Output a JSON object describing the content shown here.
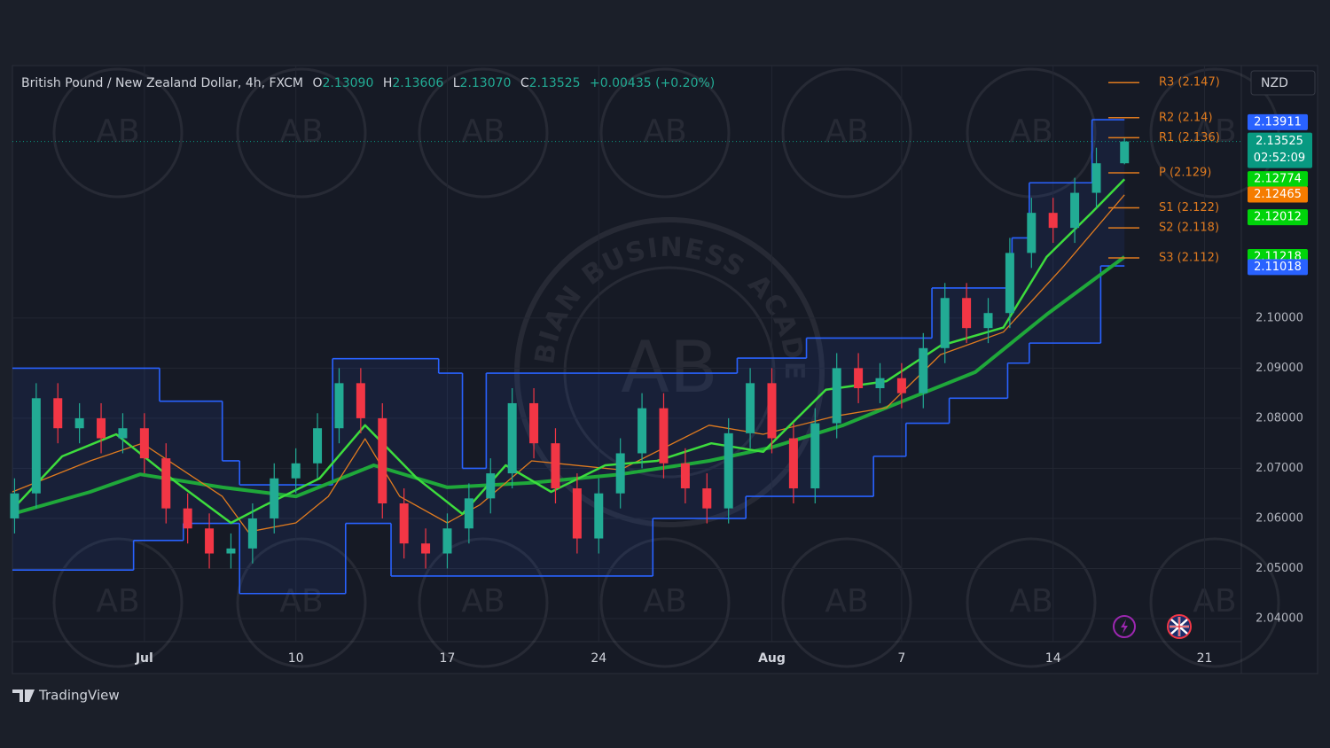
{
  "header": {
    "symbol": "British Pound / New Zealand Dollar, 4h, FXCM",
    "ohlc": [
      {
        "key": "O",
        "value": "2.13090"
      },
      {
        "key": "H",
        "value": "2.13606"
      },
      {
        "key": "L",
        "value": "2.13070"
      },
      {
        "key": "C",
        "value": "2.13525"
      }
    ],
    "change": "+0.00435 (+0.20%)"
  },
  "currency": "NZD",
  "branding": "TradingView",
  "watermark": {
    "text": "ARABIAN BUSINESS ACADEMY",
    "initials": "AB"
  },
  "chart_data": {
    "type": "candlestick",
    "xlim": [
      -3.1,
      53.7
    ],
    "ylim": [
      2.0354,
      2.1504
    ],
    "xticks": [
      {
        "value": 3,
        "label": "Jul"
      },
      10,
      17,
      24,
      {
        "value": 32,
        "label": "Aug"
      },
      {
        "value": 38,
        "label": "7"
      },
      {
        "value": 45,
        "label": "14"
      },
      {
        "value": 52,
        "label": "21"
      }
    ],
    "yticks": [
      {
        "value": 2.04,
        "label": "2.04000"
      },
      {
        "value": 2.05,
        "label": "2.05000"
      },
      {
        "value": 2.06,
        "label": "2.06000"
      },
      {
        "value": 2.07,
        "label": "2.07000"
      },
      {
        "value": 2.08,
        "label": "2.08000"
      },
      {
        "value": 2.09,
        "label": "2.09000"
      },
      {
        "value": 2.1,
        "label": "2.10000"
      }
    ],
    "grid": true,
    "up_color": "#22ab94",
    "down_color": "#f23645",
    "candles": {
      "x": [
        -3,
        -2,
        -1,
        0,
        1,
        2,
        3,
        4,
        5,
        6,
        7,
        8,
        9,
        10,
        11,
        12,
        13,
        14,
        15,
        16,
        17,
        18,
        19,
        20,
        21,
        22,
        23,
        24,
        25,
        26,
        27,
        28,
        29,
        30,
        31,
        32,
        33,
        34,
        35,
        36,
        37,
        38,
        39,
        40,
        41,
        42,
        43,
        44,
        45,
        46,
        47,
        48.3
      ],
      "open": [
        2.06,
        2.065,
        2.084,
        2.078,
        2.08,
        2.076,
        2.078,
        2.072,
        2.062,
        2.058,
        2.053,
        2.054,
        2.06,
        2.068,
        2.071,
        2.078,
        2.087,
        2.08,
        2.063,
        2.055,
        2.053,
        2.058,
        2.064,
        2.069,
        2.083,
        2.075,
        2.066,
        2.056,
        2.065,
        2.073,
        2.082,
        2.071,
        2.066,
        2.062,
        2.077,
        2.087,
        2.076,
        2.066,
        2.079,
        2.09,
        2.086,
        2.088,
        2.085,
        2.094,
        2.104,
        2.098,
        2.101,
        2.113,
        2.121,
        2.118,
        2.125,
        2.1309
      ],
      "high": [
        2.068,
        2.087,
        2.087,
        2.083,
        2.083,
        2.081,
        2.081,
        2.075,
        2.065,
        2.061,
        2.057,
        2.063,
        2.071,
        2.074,
        2.081,
        2.09,
        2.09,
        2.083,
        2.066,
        2.058,
        2.061,
        2.067,
        2.072,
        2.086,
        2.086,
        2.078,
        2.069,
        2.068,
        2.076,
        2.085,
        2.085,
        2.074,
        2.069,
        2.08,
        2.09,
        2.09,
        2.079,
        2.082,
        2.093,
        2.093,
        2.091,
        2.091,
        2.097,
        2.107,
        2.107,
        2.104,
        2.116,
        2.124,
        2.124,
        2.128,
        2.134,
        2.13606
      ],
      "low": [
        2.057,
        2.062,
        2.075,
        2.075,
        2.073,
        2.073,
        2.069,
        2.059,
        2.055,
        2.05,
        2.05,
        2.051,
        2.057,
        2.065,
        2.068,
        2.075,
        2.077,
        2.06,
        2.052,
        2.05,
        2.05,
        2.055,
        2.061,
        2.066,
        2.072,
        2.063,
        2.053,
        2.053,
        2.062,
        2.07,
        2.068,
        2.063,
        2.059,
        2.059,
        2.074,
        2.073,
        2.063,
        2.063,
        2.076,
        2.083,
        2.083,
        2.082,
        2.082,
        2.091,
        2.095,
        2.095,
        2.098,
        2.11,
        2.115,
        2.115,
        2.122,
        2.1307
      ],
      "close": [
        2.065,
        2.084,
        2.078,
        2.08,
        2.076,
        2.078,
        2.072,
        2.062,
        2.058,
        2.053,
        2.054,
        2.06,
        2.068,
        2.071,
        2.078,
        2.087,
        2.08,
        2.063,
        2.055,
        2.053,
        2.058,
        2.064,
        2.069,
        2.083,
        2.075,
        2.066,
        2.056,
        2.065,
        2.073,
        2.082,
        2.071,
        2.066,
        2.062,
        2.077,
        2.087,
        2.076,
        2.066,
        2.079,
        2.09,
        2.086,
        2.088,
        2.085,
        2.094,
        2.104,
        2.098,
        2.101,
        2.113,
        2.121,
        2.118,
        2.125,
        2.1309,
        2.13525
      ]
    },
    "channel": {
      "color": "#2962ff",
      "upper": {
        "x": [
          -3.1,
          3.7,
          6.6,
          7.4,
          11.7,
          16.6,
          17.7,
          18.8,
          30.4,
          33.6,
          39.4,
          43.1,
          43.9,
          46.8,
          48.3
        ],
        "values": [
          2.09,
          2.0834,
          2.0715,
          2.0667,
          2.0919,
          2.089,
          2.07,
          2.089,
          2.092,
          2.096,
          2.106,
          2.116,
          2.127,
          2.1396,
          2.1396
        ]
      },
      "lower": {
        "x": [
          -3.1,
          2.5,
          4.8,
          7.4,
          12.3,
          14.4,
          26.5,
          30.8,
          36.7,
          38.2,
          40.2,
          42.9,
          43.9,
          47.2,
          48.3
        ],
        "values": [
          2.0497,
          2.0556,
          2.059,
          2.045,
          2.059,
          2.0485,
          2.06,
          2.0644,
          2.0724,
          2.079,
          2.084,
          2.091,
          2.095,
          2.1104,
          2.1104
        ]
      }
    },
    "lines": [
      {
        "color": "#1fa83a",
        "width": 4,
        "x": [
          -3.1,
          0.5,
          2.8,
          6.6,
          10,
          13.6,
          17,
          20.9,
          25,
          29.1,
          32,
          35.3,
          37.3,
          41.4,
          44.7,
          48.3
        ],
        "values": [
          2.0609,
          2.0653,
          2.0688,
          2.0662,
          2.0644,
          2.0706,
          2.0662,
          2.0671,
          2.0688,
          2.0715,
          2.0742,
          2.0786,
          2.0821,
          2.0892,
          2.1007,
          2.1122
        ]
      },
      {
        "color": "#e07b1f",
        "width": 1.3,
        "x": [
          -3.1,
          0.5,
          2.9,
          6.6,
          7.8,
          10,
          11.5,
          13.2,
          14.8,
          17,
          18.5,
          20.9,
          25,
          29.1,
          31.6,
          34.9,
          37.3,
          39.8,
          42.7,
          45.5,
          48.3
        ],
        "values": [
          2.0653,
          2.0715,
          2.075,
          2.0644,
          2.0573,
          2.0591,
          2.0644,
          2.0759,
          2.0644,
          2.0591,
          2.0627,
          2.0715,
          2.0697,
          2.0786,
          2.0768,
          2.0804,
          2.0821,
          2.0927,
          2.0972,
          2.1104,
          2.1246
        ]
      },
      {
        "color": "#3ddc3d",
        "width": 2.5,
        "x": [
          -3.1,
          -0.8,
          1.7,
          4.5,
          7,
          8.6,
          11.1,
          13.2,
          15.6,
          17.7,
          19.7,
          21.8,
          24.3,
          26.7,
          29.2,
          31.6,
          34.5,
          37.3,
          39.8,
          42.7,
          44.7,
          46.8,
          48.3
        ],
        "values": [
          2.0618,
          2.0724,
          2.0768,
          2.0671,
          2.0591,
          2.0627,
          2.068,
          2.0786,
          2.068,
          2.0609,
          2.0706,
          2.0653,
          2.0706,
          2.0715,
          2.075,
          2.0733,
          2.0857,
          2.0874,
          2.0945,
          2.0981,
          2.1122,
          2.1211,
          2.1277
        ]
      }
    ],
    "pivots": {
      "color": "#e07b1f",
      "levels": [
        {
          "label": "R3 (2.147)",
          "value": 2.147
        },
        {
          "label": "R2 (2.14)",
          "value": 2.14
        },
        {
          "label": "R1 (2.136)",
          "value": 2.136
        },
        {
          "label": "P (2.129)",
          "value": 2.129
        },
        {
          "label": "S1 (2.122)",
          "value": 2.122
        },
        {
          "label": "S2 (2.118)",
          "value": 2.118
        },
        {
          "label": "S3 (2.112)",
          "value": 2.112
        }
      ]
    },
    "price_tags": [
      {
        "value": 2.13911,
        "color": "#2962ff"
      },
      {
        "value": 2.13525,
        "color": "#089981",
        "countdown": "02:52:09"
      },
      {
        "value": 2.12774,
        "color": "#00d40a"
      },
      {
        "value": 2.12465,
        "color": "#f57c00"
      },
      {
        "value": 2.12012,
        "color": "#00d40a"
      },
      {
        "value": 2.11218,
        "color": "#00d40a"
      },
      {
        "value": 2.11018,
        "color": "#2962ff"
      }
    ]
  }
}
